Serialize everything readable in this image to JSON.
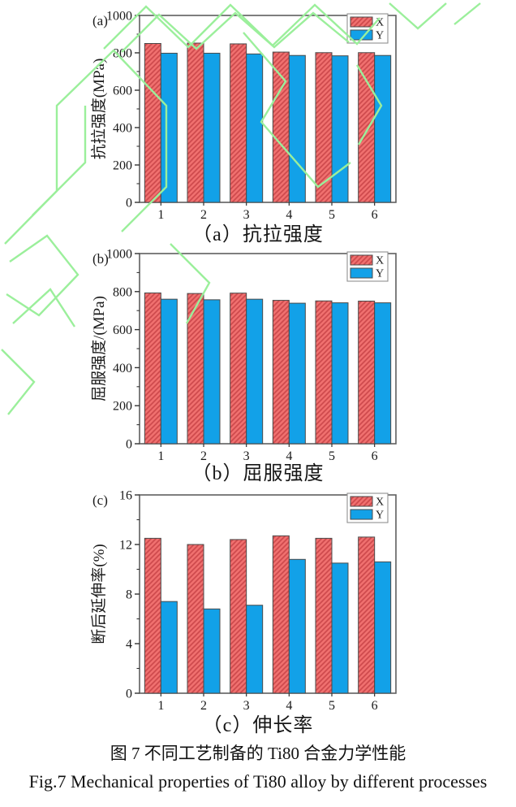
{
  "page": {
    "caption_cn": "图 7 不同工艺制备的 Ti80 合金力学性能",
    "caption_en": "Fig.7 Mechanical properties of Ti80 alloy by different processes"
  },
  "colors": {
    "series_x_fill": "#F0706F",
    "series_x_hatch": "#CE4A4D",
    "series_y_fill": "#12A1E8",
    "bar_border": "#4a4a4a",
    "plot_border": "#5f5f5f",
    "tick_color": "#333333",
    "legend_border": "#909090",
    "watermark_green": "#9BEF9B"
  },
  "chart_data": [
    {
      "type": "bar",
      "panel": "(a)",
      "caption": "（a）抗拉强度",
      "ylabel": "抗拉强度(MPa)",
      "xlabel": "",
      "ylim": [
        0,
        1000
      ],
      "yticks": [
        0,
        200,
        400,
        600,
        800,
        1000
      ],
      "minor_ticks": true,
      "grid": false,
      "legend_position": "top-right",
      "categories": [
        "1",
        "2",
        "3",
        "4",
        "5",
        "6"
      ],
      "series": [
        {
          "name": "X",
          "values": [
            850,
            852,
            848,
            804,
            801,
            801
          ]
        },
        {
          "name": "Y",
          "values": [
            798,
            798,
            794,
            786,
            784,
            786
          ]
        }
      ]
    },
    {
      "type": "bar",
      "panel": "(b)",
      "caption": "（b）屈服强度",
      "ylabel": "屈服强度/(MPa)",
      "xlabel": "",
      "ylim": [
        0,
        1000
      ],
      "yticks": [
        0,
        200,
        400,
        600,
        800,
        1000
      ],
      "minor_ticks": true,
      "grid": false,
      "legend_position": "top-right",
      "categories": [
        "1",
        "2",
        "3",
        "4",
        "5",
        "6"
      ],
      "series": [
        {
          "name": "X",
          "values": [
            793,
            790,
            792,
            754,
            751,
            750
          ]
        },
        {
          "name": "Y",
          "values": [
            760,
            757,
            760,
            739,
            741,
            741
          ]
        }
      ]
    },
    {
      "type": "bar",
      "panel": "(c)",
      "caption": "（c）伸长率",
      "ylabel": "断后延伸率(%)",
      "xlabel": "",
      "ylim": [
        0,
        16
      ],
      "yticks": [
        0,
        4,
        8,
        12,
        16
      ],
      "minor_ticks": true,
      "grid": false,
      "legend_position": "top-right",
      "categories": [
        "1",
        "2",
        "3",
        "4",
        "5",
        "6"
      ],
      "series": [
        {
          "name": "X",
          "values": [
            12.5,
            12.0,
            12.4,
            12.7,
            12.5,
            12.6
          ]
        },
        {
          "name": "Y",
          "values": [
            7.4,
            6.8,
            7.1,
            10.8,
            10.5,
            10.6
          ]
        }
      ]
    }
  ]
}
